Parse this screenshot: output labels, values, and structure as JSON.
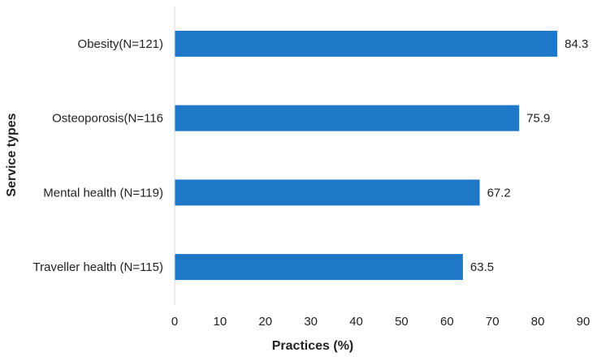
{
  "chart_data": {
    "type": "bar",
    "orientation": "horizontal",
    "categories": [
      "Obesity(N=121)",
      "Osteoporosis(N=116",
      "Mental health (N=119)",
      "Traveller health (N=115)"
    ],
    "values": [
      84.3,
      75.9,
      67.2,
      63.5
    ],
    "data_labels": [
      "84.3",
      "75.9",
      "67.2",
      "63.5"
    ],
    "xlabel": "Practices (%)",
    "ylabel": "Service types",
    "xlim": [
      0,
      90
    ],
    "xticks": [
      0,
      10,
      20,
      30,
      40,
      50,
      60,
      70,
      80,
      90
    ],
    "grid": false,
    "legend": "none",
    "bar_color": "#1F77C8",
    "axis_color": "#D9D9D9"
  }
}
